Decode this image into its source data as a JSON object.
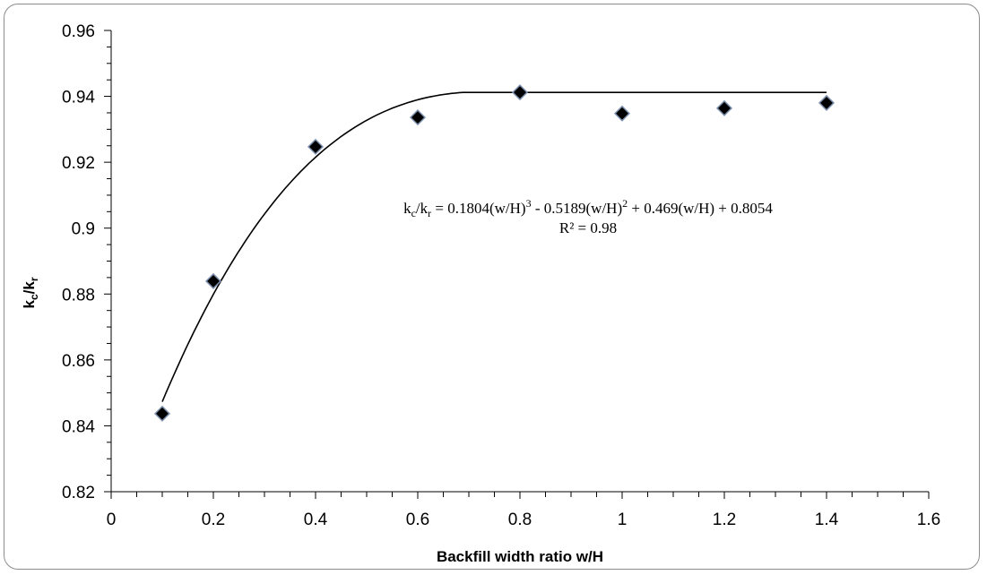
{
  "chart_data": {
    "type": "scatter",
    "title": "",
    "xlabel": "Backfill width ratio w/H",
    "ylabel": {
      "k": "k",
      "c": "c",
      "slash": "/",
      "k2": "k",
      "r": "r"
    },
    "xlim": [
      0,
      1.6
    ],
    "ylim": [
      0.82,
      0.96
    ],
    "x_ticks": [
      "0",
      "0.2",
      "0.4",
      "0.6",
      "0.8",
      "1",
      "1.2",
      "1.4",
      "1.6"
    ],
    "y_ticks": [
      "0.82",
      "0.84",
      "0.86",
      "0.88",
      "0.9",
      "0.92",
      "0.94",
      "0.96"
    ],
    "x_minor_step": 0.05,
    "y_minor_step": 0.005,
    "grid": false,
    "series": [
      {
        "marker": "diamond",
        "color": "#000000",
        "points": [
          {
            "x": 0.1,
            "y": 0.8437
          },
          {
            "x": 0.2,
            "y": 0.8839
          },
          {
            "x": 0.4,
            "y": 0.9247
          },
          {
            "x": 0.6,
            "y": 0.9336
          },
          {
            "x": 0.8,
            "y": 0.9412
          },
          {
            "x": 1.0,
            "y": 0.9348
          },
          {
            "x": 1.2,
            "y": 0.9364
          },
          {
            "x": 1.4,
            "y": 0.938
          }
        ]
      }
    ],
    "trendline": {
      "type": "polynomial",
      "coefficients": [
        0.1804,
        -0.5189,
        0.469,
        0.8054
      ],
      "x_range": [
        0.1,
        0.72
      ],
      "plateau_y": 0.9412,
      "plateau_x_end": 1.4,
      "color": "#000000"
    },
    "annotation": {
      "equation": {
        "p1": "k",
        "s1": "c",
        "p2": "/k",
        "s2": "r",
        "p3": " = 0.1804(w/H)",
        "e1": "3",
        "p4": " - 0.5189(w/H)",
        "e2": "2",
        "p5": " + 0.469(w/H) + 0.8054"
      },
      "r_squared": "R² = 0.98"
    }
  }
}
